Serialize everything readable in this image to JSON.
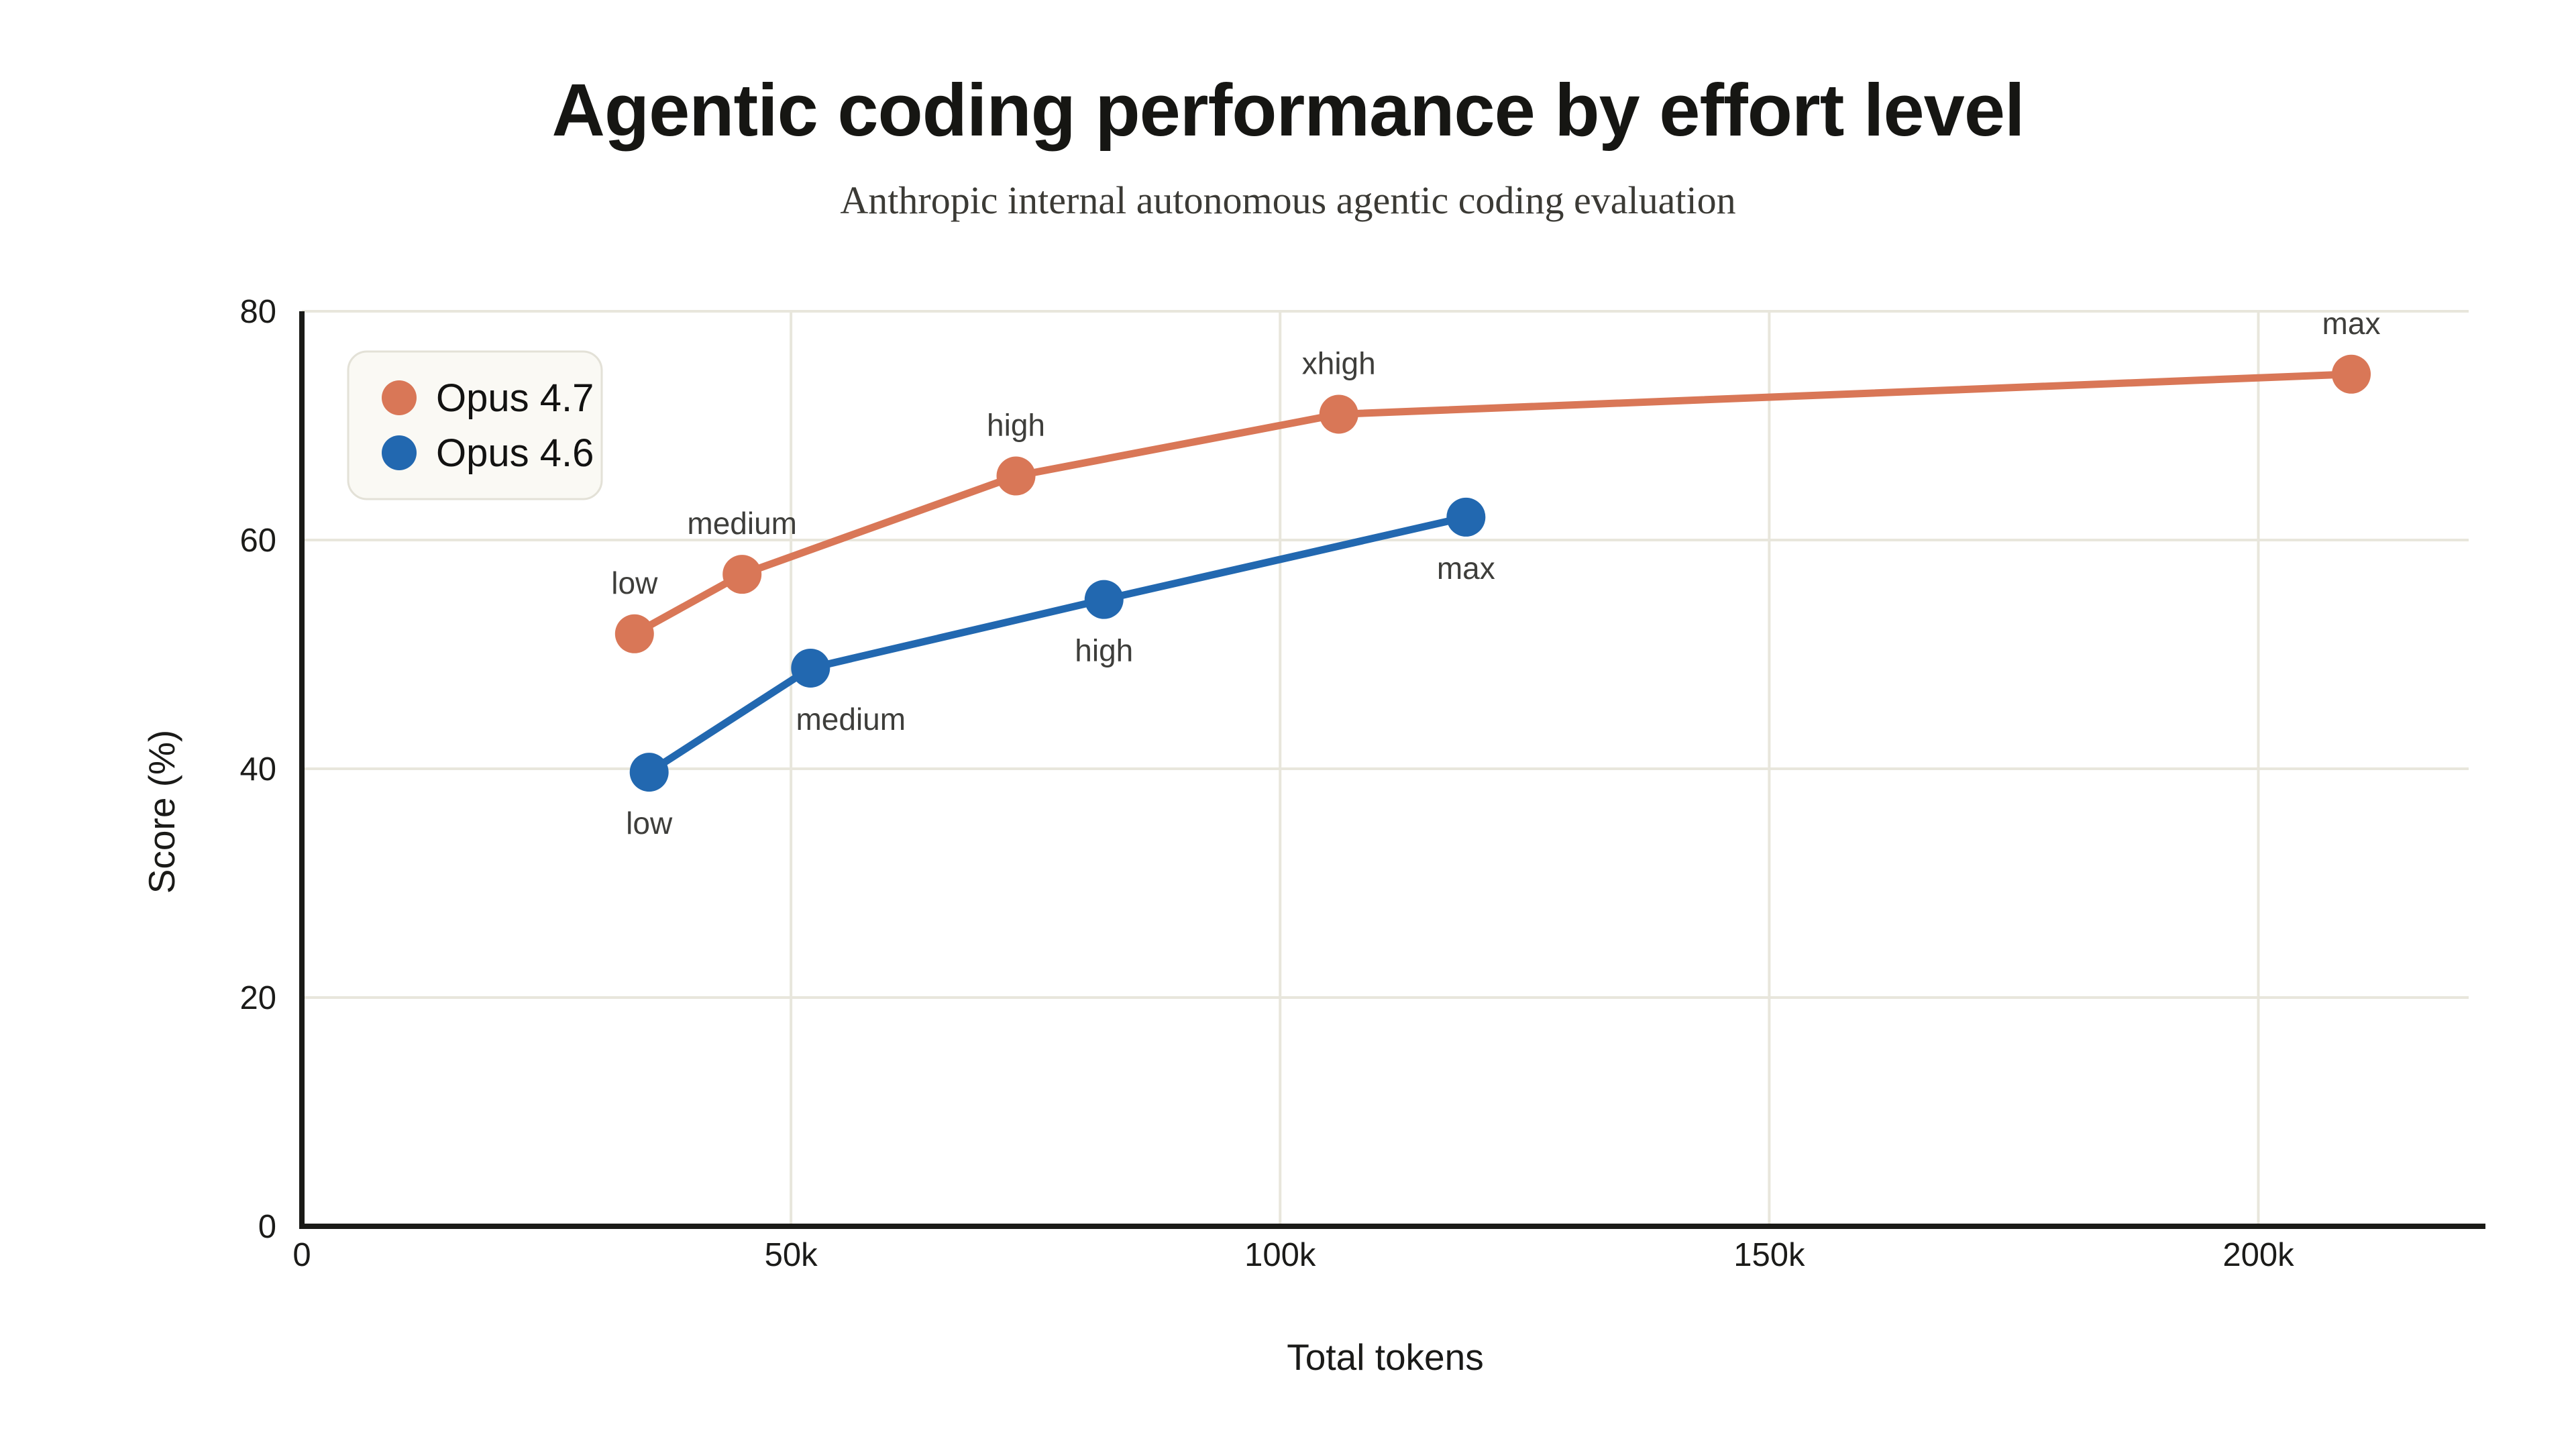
{
  "header": {
    "title": "Agentic coding performance by effort level",
    "subtitle": "Anthropic internal autonomous agentic coding evaluation"
  },
  "theme": {
    "page_background": "#ffffff",
    "gridline_color": "#e8e6dc",
    "spine_color": "#1a1a17",
    "legend_background": "#faf9f4",
    "legend_border": "#e3e1d7",
    "title_color": "#161613",
    "subtitle_color": "#3b3a35",
    "point_label_color": "#3e3e3b"
  },
  "chart_data": {
    "type": "line",
    "title": "Agentic coding performance by effort level",
    "subtitle": "Anthropic internal autonomous agentic coding evaluation",
    "xlabel": "Total tokens",
    "ylabel": "Score (%)",
    "x_unit": "tokens (thousands)",
    "xlim": [
      0,
      221.5
    ],
    "ylim": [
      0,
      80
    ],
    "grid": true,
    "legend_position": "top-left",
    "x_ticks": [
      {
        "value": 0,
        "label": "0"
      },
      {
        "value": 50,
        "label": "50k"
      },
      {
        "value": 100,
        "label": "100k"
      },
      {
        "value": 150,
        "label": "150k"
      },
      {
        "value": 200,
        "label": "200k"
      }
    ],
    "y_ticks": [
      {
        "value": 0,
        "label": "0"
      },
      {
        "value": 20,
        "label": "20"
      },
      {
        "value": 40,
        "label": "40"
      },
      {
        "value": 60,
        "label": "60"
      },
      {
        "value": 80,
        "label": "80"
      }
    ],
    "series": [
      {
        "name": "Opus 4.7",
        "color": "#d97757",
        "points": [
          {
            "label": "low",
            "x": 34,
            "y": 51.8,
            "label_pos": "above",
            "label_dx": 0
          },
          {
            "label": "medium",
            "x": 45,
            "y": 57.0,
            "label_pos": "above",
            "label_dx": 0
          },
          {
            "label": "high",
            "x": 73,
            "y": 65.6,
            "label_pos": "above",
            "label_dx": 0
          },
          {
            "label": "xhigh",
            "x": 106,
            "y": 71.0,
            "label_pos": "above",
            "label_dx": 0
          },
          {
            "label": "max",
            "x": 209.5,
            "y": 74.5,
            "label_pos": "above",
            "label_dx": 0
          }
        ]
      },
      {
        "name": "Opus 4.6",
        "color": "#2268b0",
        "points": [
          {
            "label": "low",
            "x": 35.5,
            "y": 39.7,
            "label_pos": "below",
            "label_dx": 0
          },
          {
            "label": "medium",
            "x": 52,
            "y": 48.8,
            "label_pos": "below",
            "label_dx": 60
          },
          {
            "label": "high",
            "x": 82,
            "y": 54.8,
            "label_pos": "below",
            "label_dx": 0
          },
          {
            "label": "max",
            "x": 119,
            "y": 62.0,
            "label_pos": "below",
            "label_dx": 0
          }
        ]
      }
    ]
  }
}
